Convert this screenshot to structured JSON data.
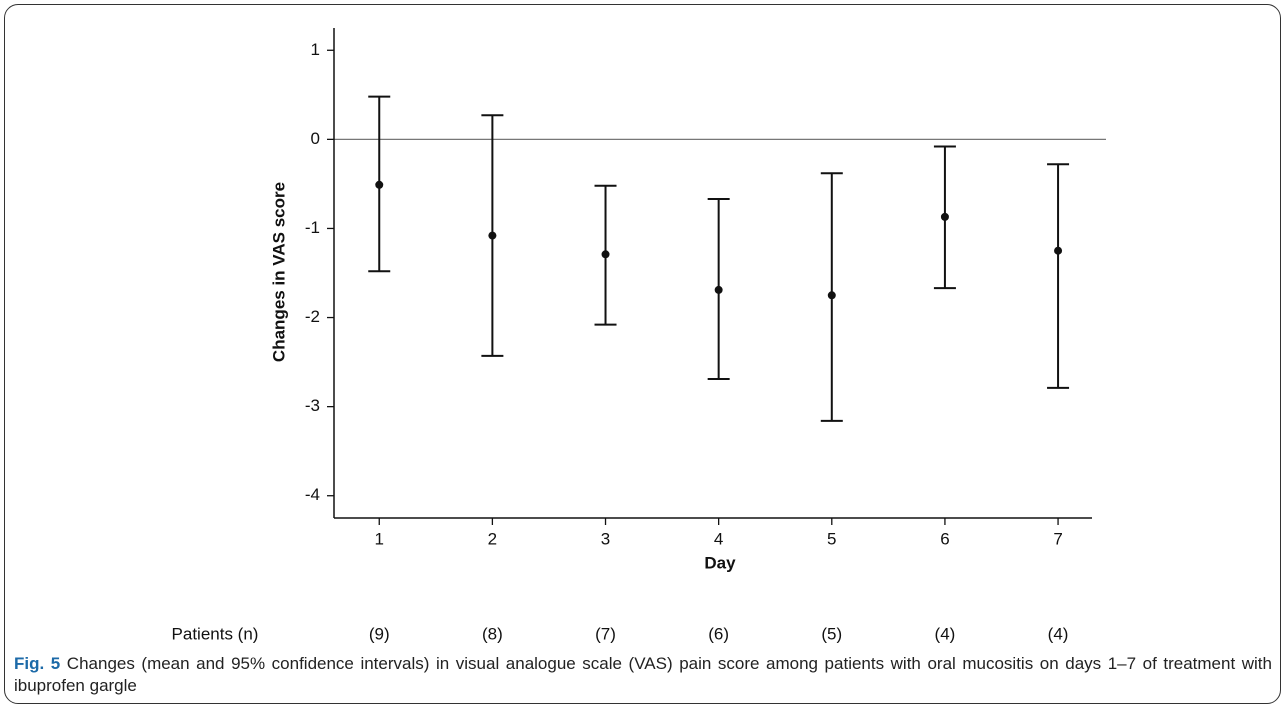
{
  "chart_data": {
    "type": "errorbar",
    "ylabel": "Changes in VAS score",
    "xlabel": "Day",
    "x": [
      1,
      2,
      3,
      4,
      5,
      6,
      7
    ],
    "values": [
      -0.51,
      -1.08,
      -1.29,
      -1.69,
      -1.75,
      -0.87,
      -1.25
    ],
    "lower": [
      -1.48,
      -2.43,
      -2.08,
      -2.69,
      -3.16,
      -1.67,
      -2.79
    ],
    "upper": [
      0.48,
      0.27,
      -0.52,
      -0.67,
      -0.38,
      -0.08,
      -0.28
    ],
    "color": "#111111",
    "reference_line": 0,
    "xlim": [
      0.6,
      7.3
    ],
    "xticks": [
      1,
      2,
      3,
      4,
      5,
      6,
      7
    ],
    "ylim": [
      -4.25,
      1.25
    ],
    "yticks": [
      1,
      0,
      -1,
      -2,
      -3,
      -4
    ]
  },
  "patients": {
    "label": "Patients (n)",
    "values": [
      "(9)",
      "(8)",
      "(7)",
      "(6)",
      "(5)",
      "(4)",
      "(4)"
    ]
  },
  "caption": {
    "label": "Fig. 5",
    "text": "Changes (mean and 95% confidence intervals) in visual analogue scale (VAS) pain score among patients with oral mucositis on days 1–7 of treatment with ibuprofen gargle"
  }
}
